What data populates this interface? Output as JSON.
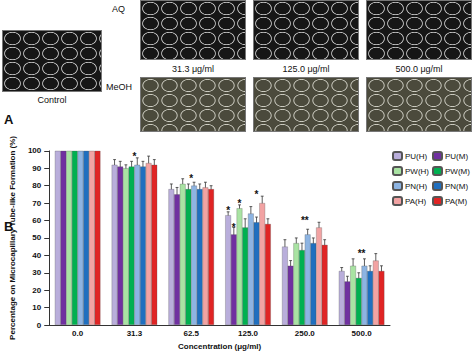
{
  "panel_a": {
    "label": "A",
    "control": "Control",
    "rows": [
      "AQ",
      "MeOH"
    ],
    "concentrations": [
      "31.3 μg/ml",
      "125.0 μg/ml",
      "500.0 μg/ml"
    ]
  },
  "panel_b": {
    "label": "B"
  },
  "chart_data": {
    "type": "bar",
    "x_label": "Concentration (μg/ml)",
    "y_label": "Percentage on Microcapillary Tube-like Formation (%)",
    "categories": [
      "0.0",
      "31.3",
      "62.5",
      "125.0",
      "250.0",
      "500.0"
    ],
    "series": [
      {
        "name": "PU(H)",
        "color": "#b9aedb",
        "values": [
          100,
          92,
          78,
          63,
          45,
          31
        ],
        "errors": [
          0,
          3,
          3,
          2,
          4,
          2
        ]
      },
      {
        "name": "PU(M)",
        "color": "#7030a0",
        "values": [
          100,
          91,
          75,
          52,
          34,
          25
        ],
        "errors": [
          0,
          3,
          4,
          4,
          3,
          3
        ]
      },
      {
        "name": "PW(H)",
        "color": "#a9e3a3",
        "values": [
          100,
          90,
          81,
          67,
          47,
          34
        ],
        "errors": [
          0,
          2,
          3,
          2,
          3,
          4
        ]
      },
      {
        "name": "PW(M)",
        "color": "#00b050",
        "values": [
          100,
          91,
          78,
          56,
          43,
          27
        ],
        "errors": [
          0,
          3,
          3,
          5,
          4,
          3
        ]
      },
      {
        "name": "PN(H)",
        "color": "#8db4e2",
        "values": [
          100,
          92,
          80,
          64,
          52,
          34
        ],
        "errors": [
          0,
          4,
          2,
          4,
          3,
          4
        ]
      },
      {
        "name": "PN(M)",
        "color": "#1f6fbf",
        "values": [
          100,
          91,
          78,
          59,
          47,
          31
        ],
        "errors": [
          0,
          3,
          3,
          3,
          3,
          3
        ]
      },
      {
        "name": "PA(H)",
        "color": "#f2a3a3",
        "values": [
          100,
          93,
          79,
          70,
          56,
          37
        ],
        "errors": [
          0,
          4,
          3,
          4,
          3,
          4
        ]
      },
      {
        "name": "PA(M)",
        "color": "#e02424",
        "values": [
          100,
          92,
          78,
          58,
          46,
          31
        ],
        "errors": [
          0,
          3,
          2,
          3,
          3,
          3
        ]
      }
    ],
    "annotations": [
      {
        "category": "31.3",
        "y": 97,
        "text": "*"
      },
      {
        "category": "62.5",
        "y": 84,
        "text": "*"
      },
      {
        "category": "125.0",
        "series": "PU(H)",
        "y": 66,
        "text": "*"
      },
      {
        "category": "125.0",
        "series": "PU(M)",
        "y": 56,
        "text": "*"
      },
      {
        "category": "125.0",
        "series": "PW(H)",
        "y": 70,
        "text": "*"
      },
      {
        "category": "125.0",
        "series": "PN(M)",
        "y": 75,
        "text": "*"
      },
      {
        "category": "250.0",
        "y": 60,
        "text": "**"
      },
      {
        "category": "500.0",
        "y": 41,
        "text": "**"
      }
    ],
    "ylim": [
      0,
      100
    ],
    "yticks": [
      0,
      10,
      20,
      30,
      40,
      50,
      60,
      70,
      80,
      90,
      100
    ],
    "grid": false,
    "legend": "right"
  }
}
